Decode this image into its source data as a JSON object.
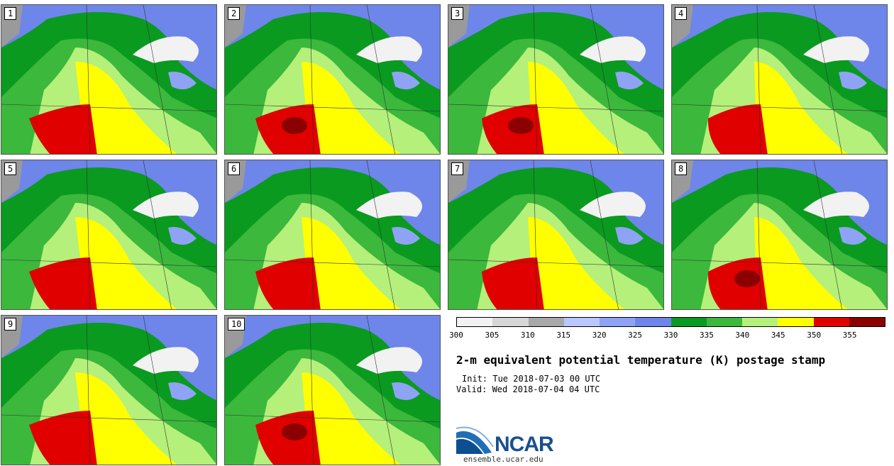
{
  "panels": [
    {
      "label": "1"
    },
    {
      "label": "2"
    },
    {
      "label": "3"
    },
    {
      "label": "4"
    },
    {
      "label": "5"
    },
    {
      "label": "6"
    },
    {
      "label": "7"
    },
    {
      "label": "8"
    },
    {
      "label": "9"
    },
    {
      "label": "10"
    }
  ],
  "colorbar": {
    "colors": [
      "#f2f2f2",
      "#d6d6d6",
      "#a8a8a8",
      "#b8c8ff",
      "#8fa3f5",
      "#6e85ea",
      "#0a9a1f",
      "#3cb83c",
      "#b4f07a",
      "#ffff00",
      "#e00000",
      "#8b0000"
    ],
    "labels": [
      "300",
      "305",
      "310",
      "315",
      "320",
      "325",
      "330",
      "335",
      "340",
      "345",
      "350",
      "355"
    ]
  },
  "title": "2-m equivalent potential temperature (K) postage stamp",
  "init": "Init: Tue 2018-07-03 00 UTC",
  "valid": "Valid: Wed 2018-07-04 04 UTC",
  "logo_text": "NCAR",
  "url": "ensemble.ucar.edu"
}
